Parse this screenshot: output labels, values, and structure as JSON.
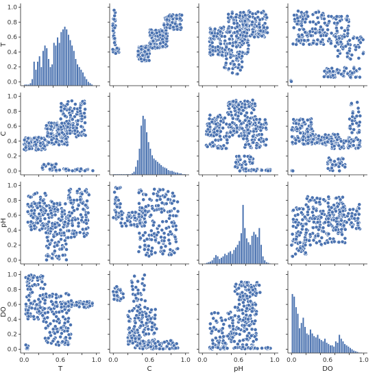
{
  "chart_data": {
    "type": "pairplot",
    "variables": [
      "T",
      "C",
      "pH",
      "DO"
    ],
    "ticks": [
      "0.0",
      "0.2",
      "0.4",
      "0.6",
      "0.8",
      "1.0"
    ],
    "xlim": [
      -0.05,
      1.05
    ],
    "ylim": [
      -0.05,
      1.05
    ],
    "color": "#4a72b0",
    "diag_type": "histogram",
    "offdiag_type": "scatter",
    "histograms": {
      "T": {
        "bin_edges": [
          0.0,
          0.025,
          0.05,
          0.075,
          0.1,
          0.125,
          0.15,
          0.175,
          0.2,
          0.225,
          0.25,
          0.275,
          0.3,
          0.325,
          0.35,
          0.375,
          0.4,
          0.425,
          0.45,
          0.475,
          0.5,
          0.525,
          0.55,
          0.575,
          0.6,
          0.625,
          0.65,
          0.675,
          0.7,
          0.725,
          0.75,
          0.775,
          0.8,
          0.825,
          0.85,
          0.875,
          0.9,
          0.925,
          0.95,
          0.975,
          1.0
        ],
        "counts": [
          1,
          1,
          1,
          2,
          5,
          18,
          12,
          18,
          22,
          14,
          26,
          30,
          28,
          20,
          14,
          16,
          32,
          30,
          36,
          32,
          40,
          42,
          44,
          42,
          38,
          34,
          30,
          26,
          20,
          16,
          14,
          12,
          10,
          7,
          5,
          3,
          2,
          1,
          0,
          0
        ]
      },
      "C": {
        "bin_edges": [
          0.0,
          0.025,
          0.05,
          0.075,
          0.1,
          0.125,
          0.15,
          0.175,
          0.2,
          0.225,
          0.25,
          0.275,
          0.3,
          0.325,
          0.35,
          0.375,
          0.4,
          0.425,
          0.45,
          0.475,
          0.5,
          0.525,
          0.55,
          0.575,
          0.6,
          0.625,
          0.65,
          0.675,
          0.7,
          0.725,
          0.75,
          0.775,
          0.8,
          0.825,
          0.85,
          0.875,
          0.9,
          0.925,
          0.95,
          0.975,
          1.0
        ],
        "counts": [
          1,
          1,
          1,
          1,
          1,
          1,
          1,
          1,
          1,
          1,
          2,
          4,
          10,
          18,
          32,
          60,
          72,
          68,
          52,
          40,
          32,
          24,
          20,
          18,
          16,
          14,
          12,
          10,
          9,
          8,
          6,
          5,
          5,
          4,
          3,
          3,
          2,
          2,
          1,
          1
        ]
      },
      "pH": {
        "bin_edges": [
          0.0,
          0.025,
          0.05,
          0.075,
          0.1,
          0.125,
          0.15,
          0.175,
          0.2,
          0.225,
          0.25,
          0.275,
          0.3,
          0.325,
          0.35,
          0.375,
          0.4,
          0.425,
          0.45,
          0.475,
          0.5,
          0.525,
          0.55,
          0.575,
          0.6,
          0.625,
          0.65,
          0.675,
          0.7,
          0.725,
          0.75,
          0.775,
          0.8,
          0.825,
          0.85,
          0.875,
          0.9,
          0.925,
          0.95,
          0.975,
          1.0
        ],
        "counts": [
          0,
          1,
          2,
          3,
          4,
          6,
          10,
          14,
          12,
          8,
          10,
          12,
          16,
          14,
          18,
          20,
          16,
          22,
          26,
          30,
          36,
          48,
          92,
          56,
          40,
          34,
          30,
          44,
          50,
          46,
          42,
          56,
          30,
          12,
          6,
          3,
          2,
          1,
          0,
          0
        ]
      },
      "DO": {
        "bin_edges": [
          0.0,
          0.025,
          0.05,
          0.075,
          0.1,
          0.125,
          0.15,
          0.175,
          0.2,
          0.225,
          0.25,
          0.275,
          0.3,
          0.325,
          0.35,
          0.375,
          0.4,
          0.425,
          0.45,
          0.475,
          0.5,
          0.525,
          0.55,
          0.575,
          0.6,
          0.625,
          0.65,
          0.675,
          0.7,
          0.725,
          0.75,
          0.775,
          0.8,
          0.825,
          0.85,
          0.875,
          0.9,
          0.925,
          0.95,
          0.975,
          1.0
        ],
        "counts": [
          90,
          86,
          70,
          60,
          38,
          46,
          54,
          40,
          30,
          28,
          36,
          30,
          26,
          24,
          28,
          22,
          20,
          18,
          22,
          16,
          14,
          12,
          12,
          10,
          18,
          16,
          28,
          22,
          18,
          14,
          12,
          10,
          8,
          6,
          4,
          3,
          2,
          1,
          1,
          0
        ]
      }
    },
    "scatter_clusters": {
      "C_vs_T": [
        {
          "x": [
            0.34,
            0.5
          ],
          "y": [
            0.28,
            0.48
          ],
          "n": 120
        },
        {
          "x": [
            0.5,
            0.75
          ],
          "y": [
            0.45,
            0.7
          ],
          "n": 120
        },
        {
          "x": [
            0.7,
            0.95
          ],
          "y": [
            0.7,
            0.9
          ],
          "n": 70
        },
        {
          "x": [
            -0.01,
            0.03
          ],
          "y": [
            0.35,
            0.98
          ],
          "n": 30
        },
        {
          "x": [
            0.02,
            0.08
          ],
          "y": [
            0.38,
            0.46
          ],
          "n": 8
        }
      ],
      "pH_vs_T": [
        {
          "x": [
            0.1,
            0.35
          ],
          "y": [
            0.35,
            0.75
          ],
          "n": 90
        },
        {
          "x": [
            0.35,
            0.65
          ],
          "y": [
            0.35,
            0.95
          ],
          "n": 130
        },
        {
          "x": [
            0.55,
            0.9
          ],
          "y": [
            0.6,
            0.95
          ],
          "n": 120
        },
        {
          "x": [
            0.3,
            0.55
          ],
          "y": [
            0.1,
            0.4
          ],
          "n": 40
        }
      ],
      "DO_vs_T": [
        {
          "x": [
            0.02,
            0.45
          ],
          "y": [
            0.5,
            0.95
          ],
          "n": 110
        },
        {
          "x": [
            0.4,
            0.8
          ],
          "y": [
            0.5,
            0.9
          ],
          "n": 70
        },
        {
          "x": [
            0.6,
            1.0
          ],
          "y": [
            0.3,
            0.65
          ],
          "n": 50
        },
        {
          "x": [
            0.45,
            0.95
          ],
          "y": [
            0.05,
            0.2
          ],
          "n": 60
        },
        {
          "x": [
            -0.01,
            0.01
          ],
          "y": [
            0.0,
            0.02
          ],
          "n": 4
        }
      ],
      "T_vs_C": [
        {
          "x": [
            0.0,
            0.3
          ],
          "y": [
            0.28,
            0.45
          ],
          "n": 90
        },
        {
          "x": [
            0.3,
            0.6
          ],
          "y": [
            0.35,
            0.65
          ],
          "n": 120
        },
        {
          "x": [
            0.5,
            0.85
          ],
          "y": [
            0.45,
            0.95
          ],
          "n": 110
        },
        {
          "x": [
            0.25,
            0.45
          ],
          "y": [
            0.0,
            0.1
          ],
          "n": 30
        },
        {
          "x": [
            0.45,
            0.95
          ],
          "y": [
            0.0,
            0.03
          ],
          "n": 25
        }
      ],
      "pH_vs_C": [
        {
          "x": [
            0.05,
            0.35
          ],
          "y": [
            0.3,
            0.75
          ],
          "n": 90
        },
        {
          "x": [
            0.35,
            0.75
          ],
          "y": [
            0.45,
            0.95
          ],
          "n": 140
        },
        {
          "x": [
            0.55,
            0.9
          ],
          "y": [
            0.3,
            0.7
          ],
          "n": 80
        },
        {
          "x": [
            0.45,
            0.7
          ],
          "y": [
            0.0,
            0.2
          ],
          "n": 40
        },
        {
          "x": [
            0.55,
            0.95
          ],
          "y": [
            0.0,
            0.03
          ],
          "n": 20
        }
      ],
      "DO_vs_C": [
        {
          "x": [
            0.0,
            0.3
          ],
          "y": [
            0.35,
            0.7
          ],
          "n": 90
        },
        {
          "x": [
            0.2,
            0.65
          ],
          "y": [
            0.35,
            0.5
          ],
          "n": 80
        },
        {
          "x": [
            0.55,
            0.95
          ],
          "y": [
            0.3,
            0.45
          ],
          "n": 60
        },
        {
          "x": [
            0.5,
            0.75
          ],
          "y": [
            0.0,
            0.18
          ],
          "n": 35
        },
        {
          "x": [
            0.8,
            0.95
          ],
          "y": [
            0.5,
            0.92
          ],
          "n": 30
        },
        {
          "x": [
            0.0,
            0.02
          ],
          "y": [
            0.0,
            0.02
          ],
          "n": 4
        }
      ],
      "T_vs_pH": [
        {
          "x": [
            0.05,
            0.3
          ],
          "y": [
            0.4,
            0.9
          ],
          "n": 90
        },
        {
          "x": [
            0.3,
            0.6
          ],
          "y": [
            0.0,
            0.8
          ],
          "n": 130
        },
        {
          "x": [
            0.6,
            0.9
          ],
          "y": [
            0.3,
            0.95
          ],
          "n": 110
        }
      ],
      "C_vs_pH": [
        {
          "x": [
            0.0,
            0.1
          ],
          "y": [
            0.55,
            0.99
          ],
          "n": 30
        },
        {
          "x": [
            0.1,
            0.45
          ],
          "y": [
            0.45,
            0.65
          ],
          "n": 60
        },
        {
          "x": [
            0.35,
            0.9
          ],
          "y": [
            0.05,
            0.95
          ],
          "n": 180
        }
      ],
      "DO_vs_pH": [
        {
          "x": [
            0.0,
            0.2
          ],
          "y": [
            0.05,
            0.7
          ],
          "n": 70
        },
        {
          "x": [
            0.2,
            0.75
          ],
          "y": [
            0.2,
            0.85
          ],
          "n": 160
        },
        {
          "x": [
            0.5,
            0.95
          ],
          "y": [
            0.4,
            0.75
          ],
          "n": 80
        }
      ],
      "T_vs_DO": [
        {
          "x": [
            0.02,
            0.3
          ],
          "y": [
            0.4,
            1.0
          ],
          "n": 100
        },
        {
          "x": [
            0.25,
            0.65
          ],
          "y": [
            0.05,
            0.75
          ],
          "n": 120
        },
        {
          "x": [
            0.5,
            0.95
          ],
          "y": [
            0.55,
            0.65
          ],
          "n": 50
        },
        {
          "x": [
            0.02,
            0.06
          ],
          "y": [
            0.0,
            0.06
          ],
          "n": 6
        }
      ],
      "C_vs_DO": [
        {
          "x": [
            0.0,
            0.15
          ],
          "y": [
            0.65,
            0.85
          ],
          "n": 30
        },
        {
          "x": [
            0.2,
            0.6
          ],
          "y": [
            0.0,
            0.55
          ],
          "n": 150
        },
        {
          "x": [
            0.35,
            0.9
          ],
          "y": [
            0.0,
            0.12
          ],
          "n": 50
        },
        {
          "x": [
            0.25,
            0.45
          ],
          "y": [
            0.55,
            1.0
          ],
          "n": 30
        }
      ],
      "pH_vs_DO": [
        {
          "x": [
            0.1,
            0.45
          ],
          "y": [
            0.0,
            0.5
          ],
          "n": 80
        },
        {
          "x": [
            0.45,
            0.75
          ],
          "y": [
            0.0,
            0.9
          ],
          "n": 150
        },
        {
          "x": [
            0.1,
            0.95
          ],
          "y": [
            0.0,
            0.03
          ],
          "n": 40
        },
        {
          "x": [
            0.55,
            0.8
          ],
          "y": [
            0.7,
            0.9
          ],
          "n": 40
        }
      ]
    }
  }
}
